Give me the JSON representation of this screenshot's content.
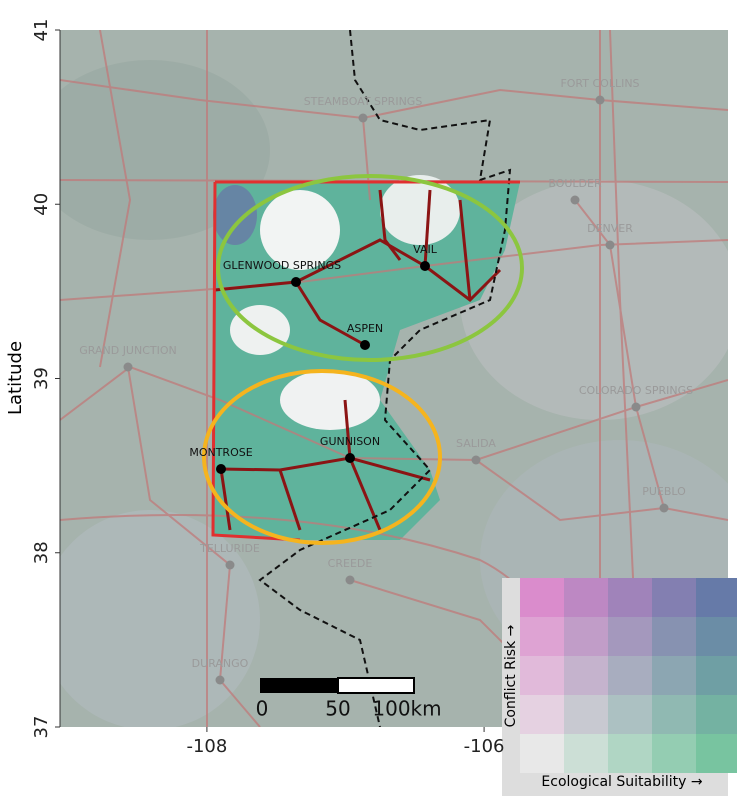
{
  "map": {
    "y_axis_label": "Latitude",
    "ylim": [
      37,
      41
    ],
    "yticks": [
      37,
      38,
      39,
      40,
      41
    ],
    "xlim": [
      -109.06,
      -104.24
    ],
    "xticks": [
      -108,
      -106
    ],
    "cities": [
      "STEAMBOAT SPRINGS",
      "FORT COLLINS",
      "BOULDER",
      "DENVER",
      "GRAND JUNCTION",
      "COLORADO SPRINGS",
      "SALIDA",
      "PUEBLO",
      "TELLURIDE",
      "CREEDE",
      "DURANGO"
    ],
    "study_towns": [
      "GLENWOOD SPRINGS",
      "VAIL",
      "ASPEN",
      "GUNNISON",
      "MONTROSE"
    ],
    "scale_bar": [
      "0",
      "50",
      "100km"
    ],
    "legend": {
      "y_label": "Conflict Risk →",
      "x_label": "Ecological Suitability →"
    }
  }
}
